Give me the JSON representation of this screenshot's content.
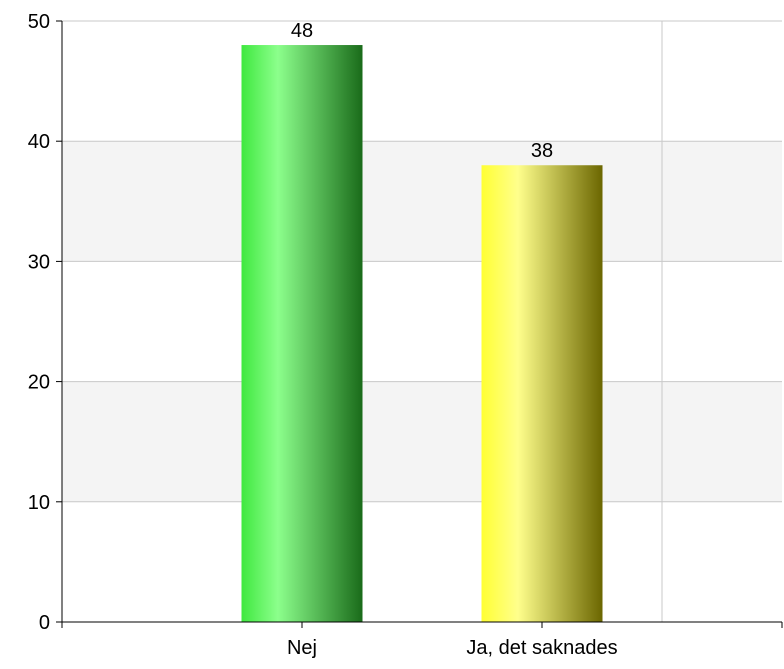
{
  "chart_data": {
    "type": "bar",
    "categories": [
      "Nej",
      "Ja, det saknades"
    ],
    "values": [
      48,
      38
    ],
    "data_labels": [
      "48",
      "38"
    ],
    "ylim": [
      0,
      50
    ],
    "yticks": [
      0,
      10,
      20,
      30,
      40,
      50
    ],
    "ytick_labels": [
      "0",
      "10",
      "20",
      "30",
      "40",
      "50"
    ],
    "grid": true,
    "alternating_bands": true,
    "legend": "none",
    "title": "",
    "xlabel": "",
    "ylabel": ""
  },
  "colors": {
    "bars": [
      {
        "light": "#8cff8c",
        "base": "#3fe83f",
        "dark": "#1a6b1a"
      },
      {
        "light": "#ffff8c",
        "base": "#ffff33",
        "dark": "#6b6600"
      }
    ],
    "band": "#f4f4f4",
    "grid": "#c8c8c8",
    "axis": "#000000"
  }
}
